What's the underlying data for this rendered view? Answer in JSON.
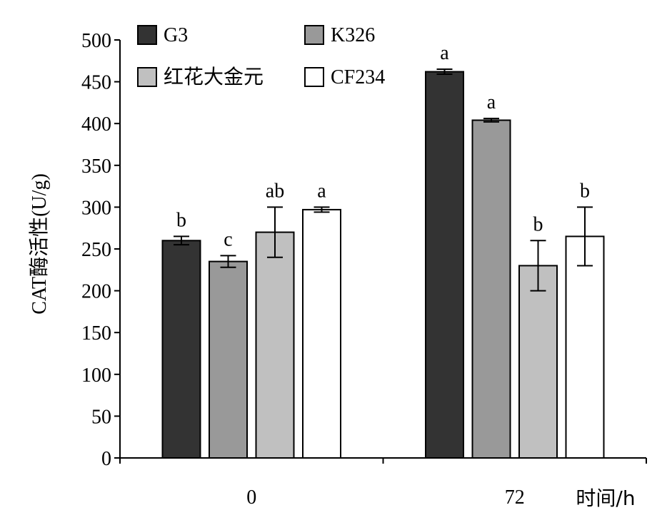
{
  "chart_data": {
    "type": "bar",
    "ylabel": "CAT酶活性(U/g)",
    "xlabel": "时间/h",
    "categories": [
      "0",
      "72"
    ],
    "ylim": [
      0,
      500
    ],
    "yticks": [
      0,
      50,
      100,
      150,
      200,
      250,
      300,
      350,
      400,
      450,
      500
    ],
    "series": [
      {
        "name": "G3",
        "color": "#333333",
        "values": [
          260,
          462
        ],
        "errors": [
          5,
          3
        ],
        "sig": [
          "b",
          "a"
        ]
      },
      {
        "name": "K326",
        "color": "#999999",
        "values": [
          235,
          404
        ],
        "errors": [
          7,
          2
        ],
        "sig": [
          "c",
          "a"
        ]
      },
      {
        "name": "红花大金元",
        "color": "#c0c0c0",
        "values": [
          270,
          230
        ],
        "errors": [
          30,
          30
        ],
        "sig": [
          "ab",
          "b"
        ]
      },
      {
        "name": "CF234",
        "color": "#ffffff",
        "values": [
          297,
          265
        ],
        "errors": [
          3,
          35
        ],
        "sig": [
          "a",
          "b"
        ]
      }
    ],
    "legend_position": "top-left",
    "grid": false
  }
}
